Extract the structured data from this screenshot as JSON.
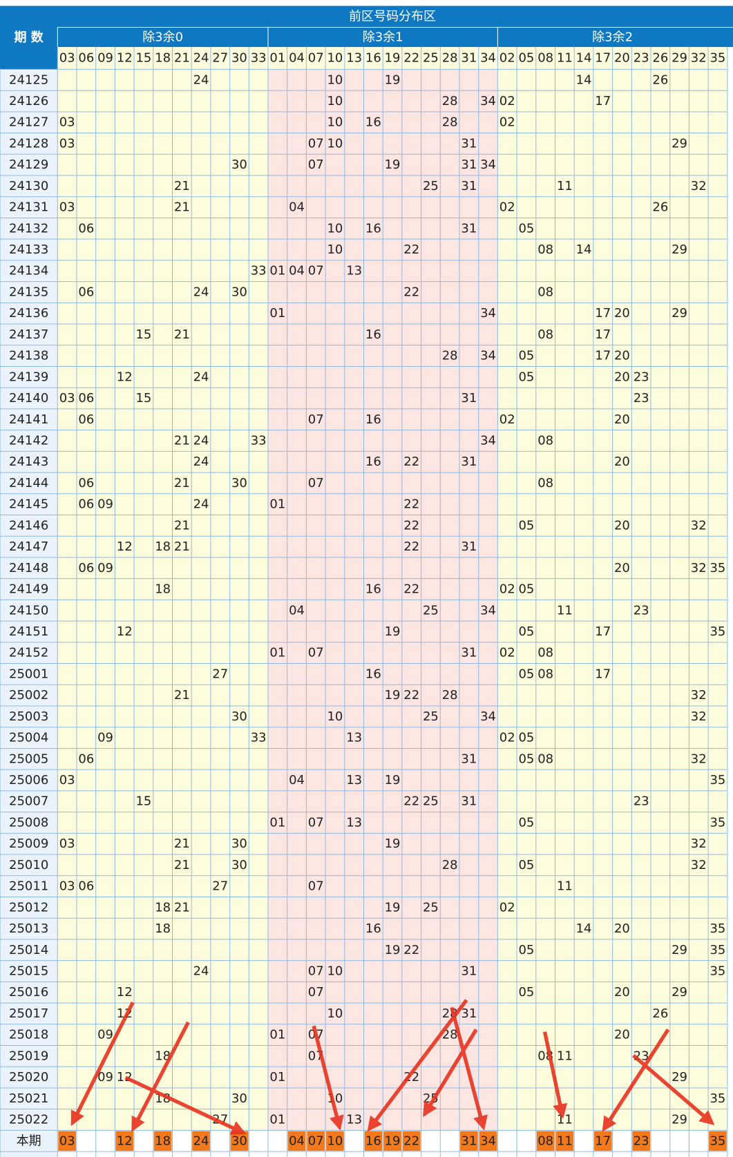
{
  "header": {
    "title": "前区号码分布区",
    "period_label": "期 数",
    "groups": [
      {
        "name": "除3余0",
        "numbers": [
          "03",
          "06",
          "09",
          "12",
          "15",
          "18",
          "21",
          "24",
          "27",
          "30",
          "33"
        ]
      },
      {
        "name": "除3余1",
        "numbers": [
          "01",
          "04",
          "07",
          "10",
          "13",
          "16",
          "19",
          "22",
          "25",
          "28",
          "31",
          "34"
        ]
      },
      {
        "name": "除3余2",
        "numbers": [
          "02",
          "05",
          "08",
          "11",
          "14",
          "17",
          "20",
          "23",
          "26",
          "29",
          "32",
          "35"
        ]
      }
    ]
  },
  "rows": [
    {
      "period": "24125",
      "numbers": [
        "24",
        "10",
        "19",
        "14",
        "26"
      ]
    },
    {
      "period": "24126",
      "numbers": [
        "10",
        "28",
        "34",
        "02",
        "17"
      ]
    },
    {
      "period": "24127",
      "numbers": [
        "03",
        "10",
        "16",
        "28",
        "02"
      ]
    },
    {
      "period": "24128",
      "numbers": [
        "03",
        "07",
        "10",
        "31",
        "29"
      ]
    },
    {
      "period": "24129",
      "numbers": [
        "30",
        "07",
        "19",
        "31",
        "34"
      ]
    },
    {
      "period": "24130",
      "numbers": [
        "21",
        "25",
        "31",
        "11",
        "32"
      ]
    },
    {
      "period": "24131",
      "numbers": [
        "03",
        "21",
        "04",
        "02",
        "26"
      ]
    },
    {
      "period": "24132",
      "numbers": [
        "06",
        "10",
        "16",
        "31",
        "05"
      ]
    },
    {
      "period": "24133",
      "numbers": [
        "10",
        "22",
        "08",
        "14",
        "29"
      ]
    },
    {
      "period": "24134",
      "numbers": [
        "33",
        "01",
        "04",
        "07",
        "13"
      ]
    },
    {
      "period": "24135",
      "numbers": [
        "06",
        "24",
        "30",
        "22",
        "08"
      ]
    },
    {
      "period": "24136",
      "numbers": [
        "01",
        "34",
        "17",
        "20",
        "29"
      ]
    },
    {
      "period": "24137",
      "numbers": [
        "15",
        "21",
        "16",
        "08",
        "17"
      ]
    },
    {
      "period": "24138",
      "numbers": [
        "28",
        "34",
        "05",
        "17",
        "20"
      ]
    },
    {
      "period": "24139",
      "numbers": [
        "12",
        "24",
        "05",
        "20",
        "23"
      ]
    },
    {
      "period": "24140",
      "numbers": [
        "03",
        "06",
        "15",
        "31",
        "23"
      ]
    },
    {
      "period": "24141",
      "numbers": [
        "06",
        "07",
        "16",
        "02",
        "20"
      ]
    },
    {
      "period": "24142",
      "numbers": [
        "21",
        "24",
        "33",
        "34",
        "08"
      ]
    },
    {
      "period": "24143",
      "numbers": [
        "24",
        "16",
        "22",
        "31",
        "20"
      ]
    },
    {
      "period": "24144",
      "numbers": [
        "06",
        "21",
        "30",
        "07",
        "08"
      ]
    },
    {
      "period": "24145",
      "numbers": [
        "06",
        "09",
        "24",
        "01",
        "22"
      ]
    },
    {
      "period": "24146",
      "numbers": [
        "21",
        "22",
        "05",
        "20",
        "32"
      ]
    },
    {
      "period": "24147",
      "numbers": [
        "12",
        "18",
        "21",
        "22",
        "31"
      ]
    },
    {
      "period": "24148",
      "numbers": [
        "06",
        "09",
        "20",
        "32",
        "35"
      ]
    },
    {
      "period": "24149",
      "numbers": [
        "18",
        "16",
        "22",
        "02",
        "05"
      ]
    },
    {
      "period": "24150",
      "numbers": [
        "04",
        "25",
        "34",
        "11",
        "23"
      ]
    },
    {
      "period": "24151",
      "numbers": [
        "12",
        "19",
        "05",
        "17",
        "35"
      ]
    },
    {
      "period": "24152",
      "numbers": [
        "01",
        "07",
        "31",
        "02",
        "08"
      ]
    },
    {
      "period": "25001",
      "numbers": [
        "27",
        "16",
        "05",
        "08",
        "17"
      ]
    },
    {
      "period": "25002",
      "numbers": [
        "21",
        "19",
        "22",
        "28",
        "32"
      ]
    },
    {
      "period": "25003",
      "numbers": [
        "30",
        "10",
        "25",
        "34",
        "32"
      ]
    },
    {
      "period": "25004",
      "numbers": [
        "09",
        "33",
        "13",
        "02",
        "05"
      ]
    },
    {
      "period": "25005",
      "numbers": [
        "06",
        "31",
        "05",
        "08",
        "32"
      ]
    },
    {
      "period": "25006",
      "numbers": [
        "03",
        "04",
        "13",
        "19",
        "35"
      ]
    },
    {
      "period": "25007",
      "numbers": [
        "15",
        "22",
        "25",
        "31",
        "23"
      ]
    },
    {
      "period": "25008",
      "numbers": [
        "01",
        "07",
        "13",
        "05",
        "35"
      ]
    },
    {
      "period": "25009",
      "numbers": [
        "03",
        "21",
        "30",
        "19",
        "32"
      ]
    },
    {
      "period": "25010",
      "numbers": [
        "21",
        "30",
        "28",
        "05",
        "32"
      ]
    },
    {
      "period": "25011",
      "numbers": [
        "03",
        "06",
        "27",
        "07",
        "11"
      ]
    },
    {
      "period": "25012",
      "numbers": [
        "18",
        "21",
        "19",
        "25",
        "02"
      ]
    },
    {
      "period": "25013",
      "numbers": [
        "18",
        "16",
        "14",
        "20",
        "35"
      ]
    },
    {
      "period": "25014",
      "numbers": [
        "19",
        "22",
        "05",
        "29",
        "35"
      ]
    },
    {
      "period": "25015",
      "numbers": [
        "24",
        "07",
        "10",
        "31",
        "35"
      ]
    },
    {
      "period": "25016",
      "numbers": [
        "12",
        "07",
        "05",
        "20",
        "29"
      ]
    },
    {
      "period": "25017",
      "numbers": [
        "12",
        "10",
        "28",
        "31",
        "26"
      ]
    },
    {
      "period": "25018",
      "numbers": [
        "09",
        "01",
        "07",
        "28",
        "20"
      ]
    },
    {
      "period": "25019",
      "numbers": [
        "18",
        "07",
        "08",
        "11",
        "23"
      ]
    },
    {
      "period": "25020",
      "numbers": [
        "09",
        "12",
        "01",
        "22",
        "29"
      ]
    },
    {
      "period": "25021",
      "numbers": [
        "18",
        "30",
        "10",
        "25",
        "35"
      ]
    },
    {
      "period": "25022",
      "numbers": [
        "27",
        "01",
        "13",
        "11",
        "29"
      ]
    }
  ],
  "current": {
    "label": "本期",
    "numbers": [
      "03",
      "12",
      "18",
      "24",
      "30",
      "04",
      "07",
      "10",
      "16",
      "19",
      "22",
      "31",
      "34",
      "08",
      "11",
      "17",
      "23",
      "35"
    ]
  }
}
